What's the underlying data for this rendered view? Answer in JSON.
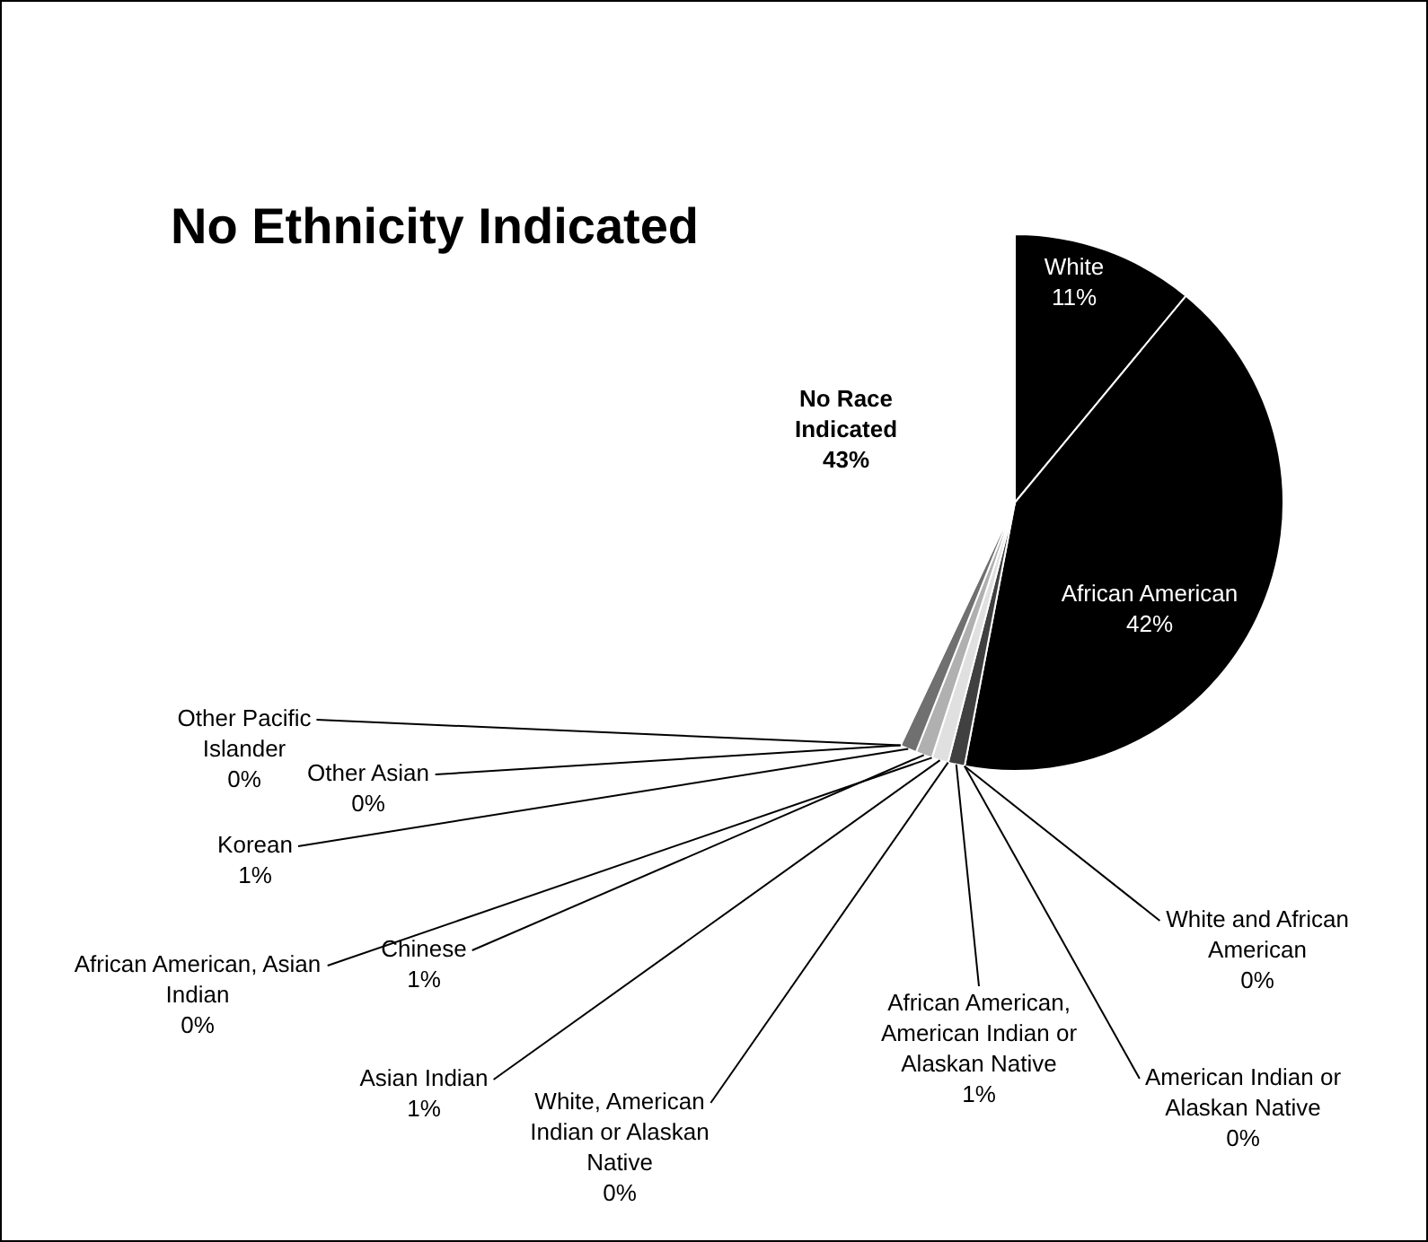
{
  "chart_data": {
    "type": "pie",
    "title": "No Ethnicity Indicated",
    "categories": [
      "White",
      "African American",
      "White and African American",
      "American Indian or Alaskan Native",
      "African American, American Indian or Alaskan Native",
      "White, American Indian or Alaskan Native",
      "Asian Indian",
      "African American, Asian Indian",
      "Chinese",
      "Korean",
      "Other Asian",
      "Other Pacific Islander",
      "No Race Indicated"
    ],
    "values": [
      11,
      42,
      0,
      0,
      1,
      0,
      1,
      0,
      1,
      1,
      0,
      0,
      43
    ],
    "value_labels": [
      "11%",
      "42%",
      "0%",
      "0%",
      "1%",
      "0%",
      "1%",
      "0%",
      "1%",
      "1%",
      "0%",
      "0%",
      "43%"
    ],
    "colors": [
      "#000000",
      "#000000",
      "#d0d0d0",
      "#a0a0a0",
      "#404040",
      "#c8c8c8",
      "#e0e0e0",
      "#909090",
      "#b0b0b0",
      "#707070",
      "#d8d8d8",
      "#606060",
      "#ffffff"
    ],
    "legend": false
  }
}
